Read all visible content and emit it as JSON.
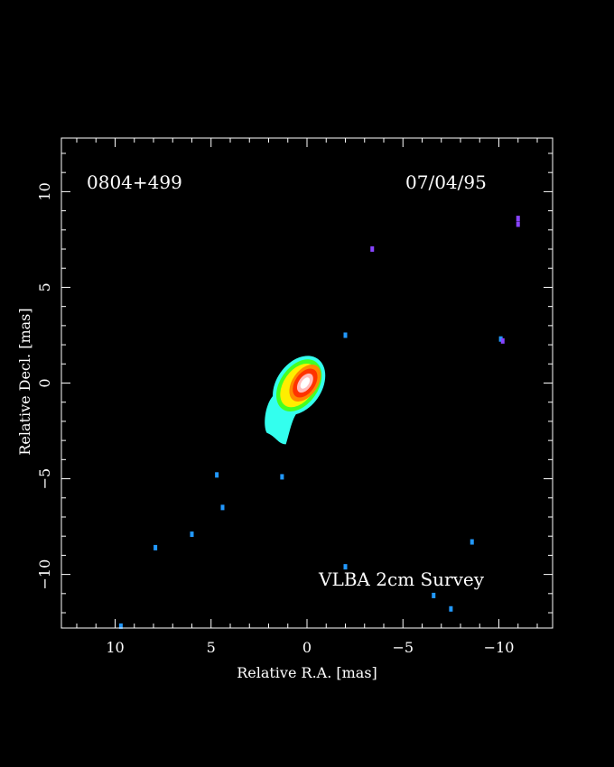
{
  "image": {
    "source_name": "0804+499",
    "epoch": "07/04/95",
    "survey_label": "VLBA 2cm Survey",
    "xlabel": "Relative R.A. [mas]",
    "ylabel": "Relative Decl. [mas]",
    "x_ticks": [
      {
        "v": 10,
        "label": "10"
      },
      {
        "v": 5,
        "label": "5"
      },
      {
        "v": 0,
        "label": "0"
      },
      {
        "v": -5,
        "label": "−5"
      },
      {
        "v": -10,
        "label": "−10"
      }
    ],
    "y_ticks": [
      {
        "v": 10,
        "label": "10"
      },
      {
        "v": 5,
        "label": "5"
      },
      {
        "v": 0,
        "label": "0"
      },
      {
        "v": -5,
        "label": "−5"
      },
      {
        "v": -10,
        "label": "−10"
      }
    ],
    "xlim": [
      12.8,
      -12.8
    ],
    "ylim": [
      -12.8,
      12.8
    ],
    "colors": {
      "background": "#000000",
      "frame": "#ffffff",
      "cyan": "#33ffee",
      "green": "#44ff22",
      "yellow": "#ffee00",
      "orange": "#ff8800",
      "red": "#ff3300",
      "white_core": "#ffffff",
      "noise_blue": "#2299ff",
      "noise_purple": "#8844ff"
    },
    "noise_spots": [
      {
        "x": -11.0,
        "y": 8.3
      },
      {
        "x": -11.0,
        "y": 8.6
      },
      {
        "x": -3.4,
        "y": 7.0
      },
      {
        "x": -2.0,
        "y": 2.5
      },
      {
        "x": -10.1,
        "y": 2.3
      },
      {
        "x": -10.2,
        "y": 2.2
      },
      {
        "x": 4.7,
        "y": -4.8
      },
      {
        "x": 1.3,
        "y": -4.9
      },
      {
        "x": 4.4,
        "y": -6.5
      },
      {
        "x": 6.0,
        "y": -7.9
      },
      {
        "x": 7.9,
        "y": -8.6
      },
      {
        "x": -8.6,
        "y": -8.3
      },
      {
        "x": -2.0,
        "y": -9.6
      },
      {
        "x": -6.6,
        "y": -11.1
      },
      {
        "x": -7.5,
        "y": -11.8
      },
      {
        "x": 9.7,
        "y": -12.7
      }
    ]
  }
}
